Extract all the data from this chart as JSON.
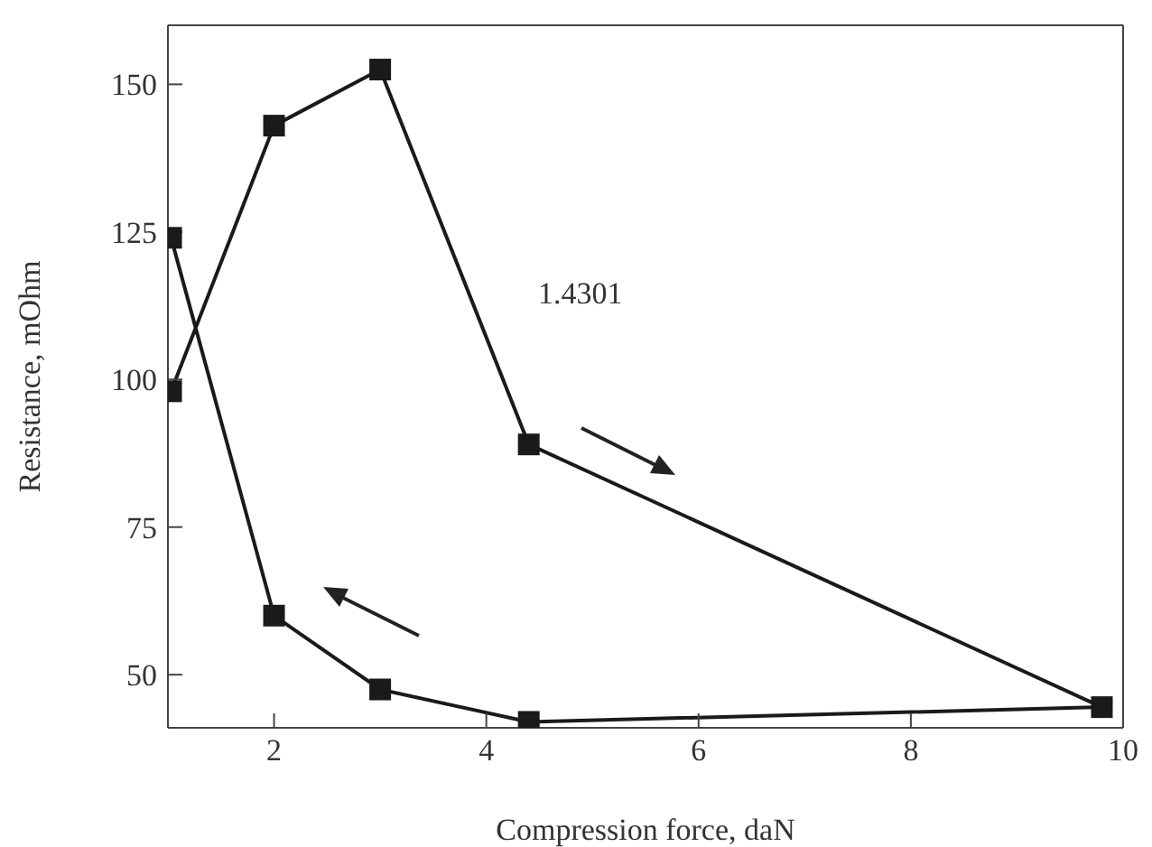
{
  "chart_data": {
    "type": "line",
    "xlabel": "Compression force, daN",
    "ylabel": "Resistance, mOhm",
    "annotations": [
      "1.4301"
    ],
    "xlim": [
      1,
      10
    ],
    "xticks": [
      2,
      4,
      6,
      8,
      10
    ],
    "ylim": [
      41,
      160
    ],
    "yticks": [
      50,
      75,
      100,
      125,
      150
    ],
    "marker": "square",
    "line_style": "solid",
    "series": [
      {
        "color": "#1a1a1a",
        "x": [
          1.03,
          2,
          3,
          4.4,
          9.8,
          4.4,
          3,
          2,
          1.03
        ],
        "values": [
          98,
          143,
          152.5,
          89,
          44.5,
          42,
          47.5,
          60,
          124
        ]
      }
    ]
  }
}
